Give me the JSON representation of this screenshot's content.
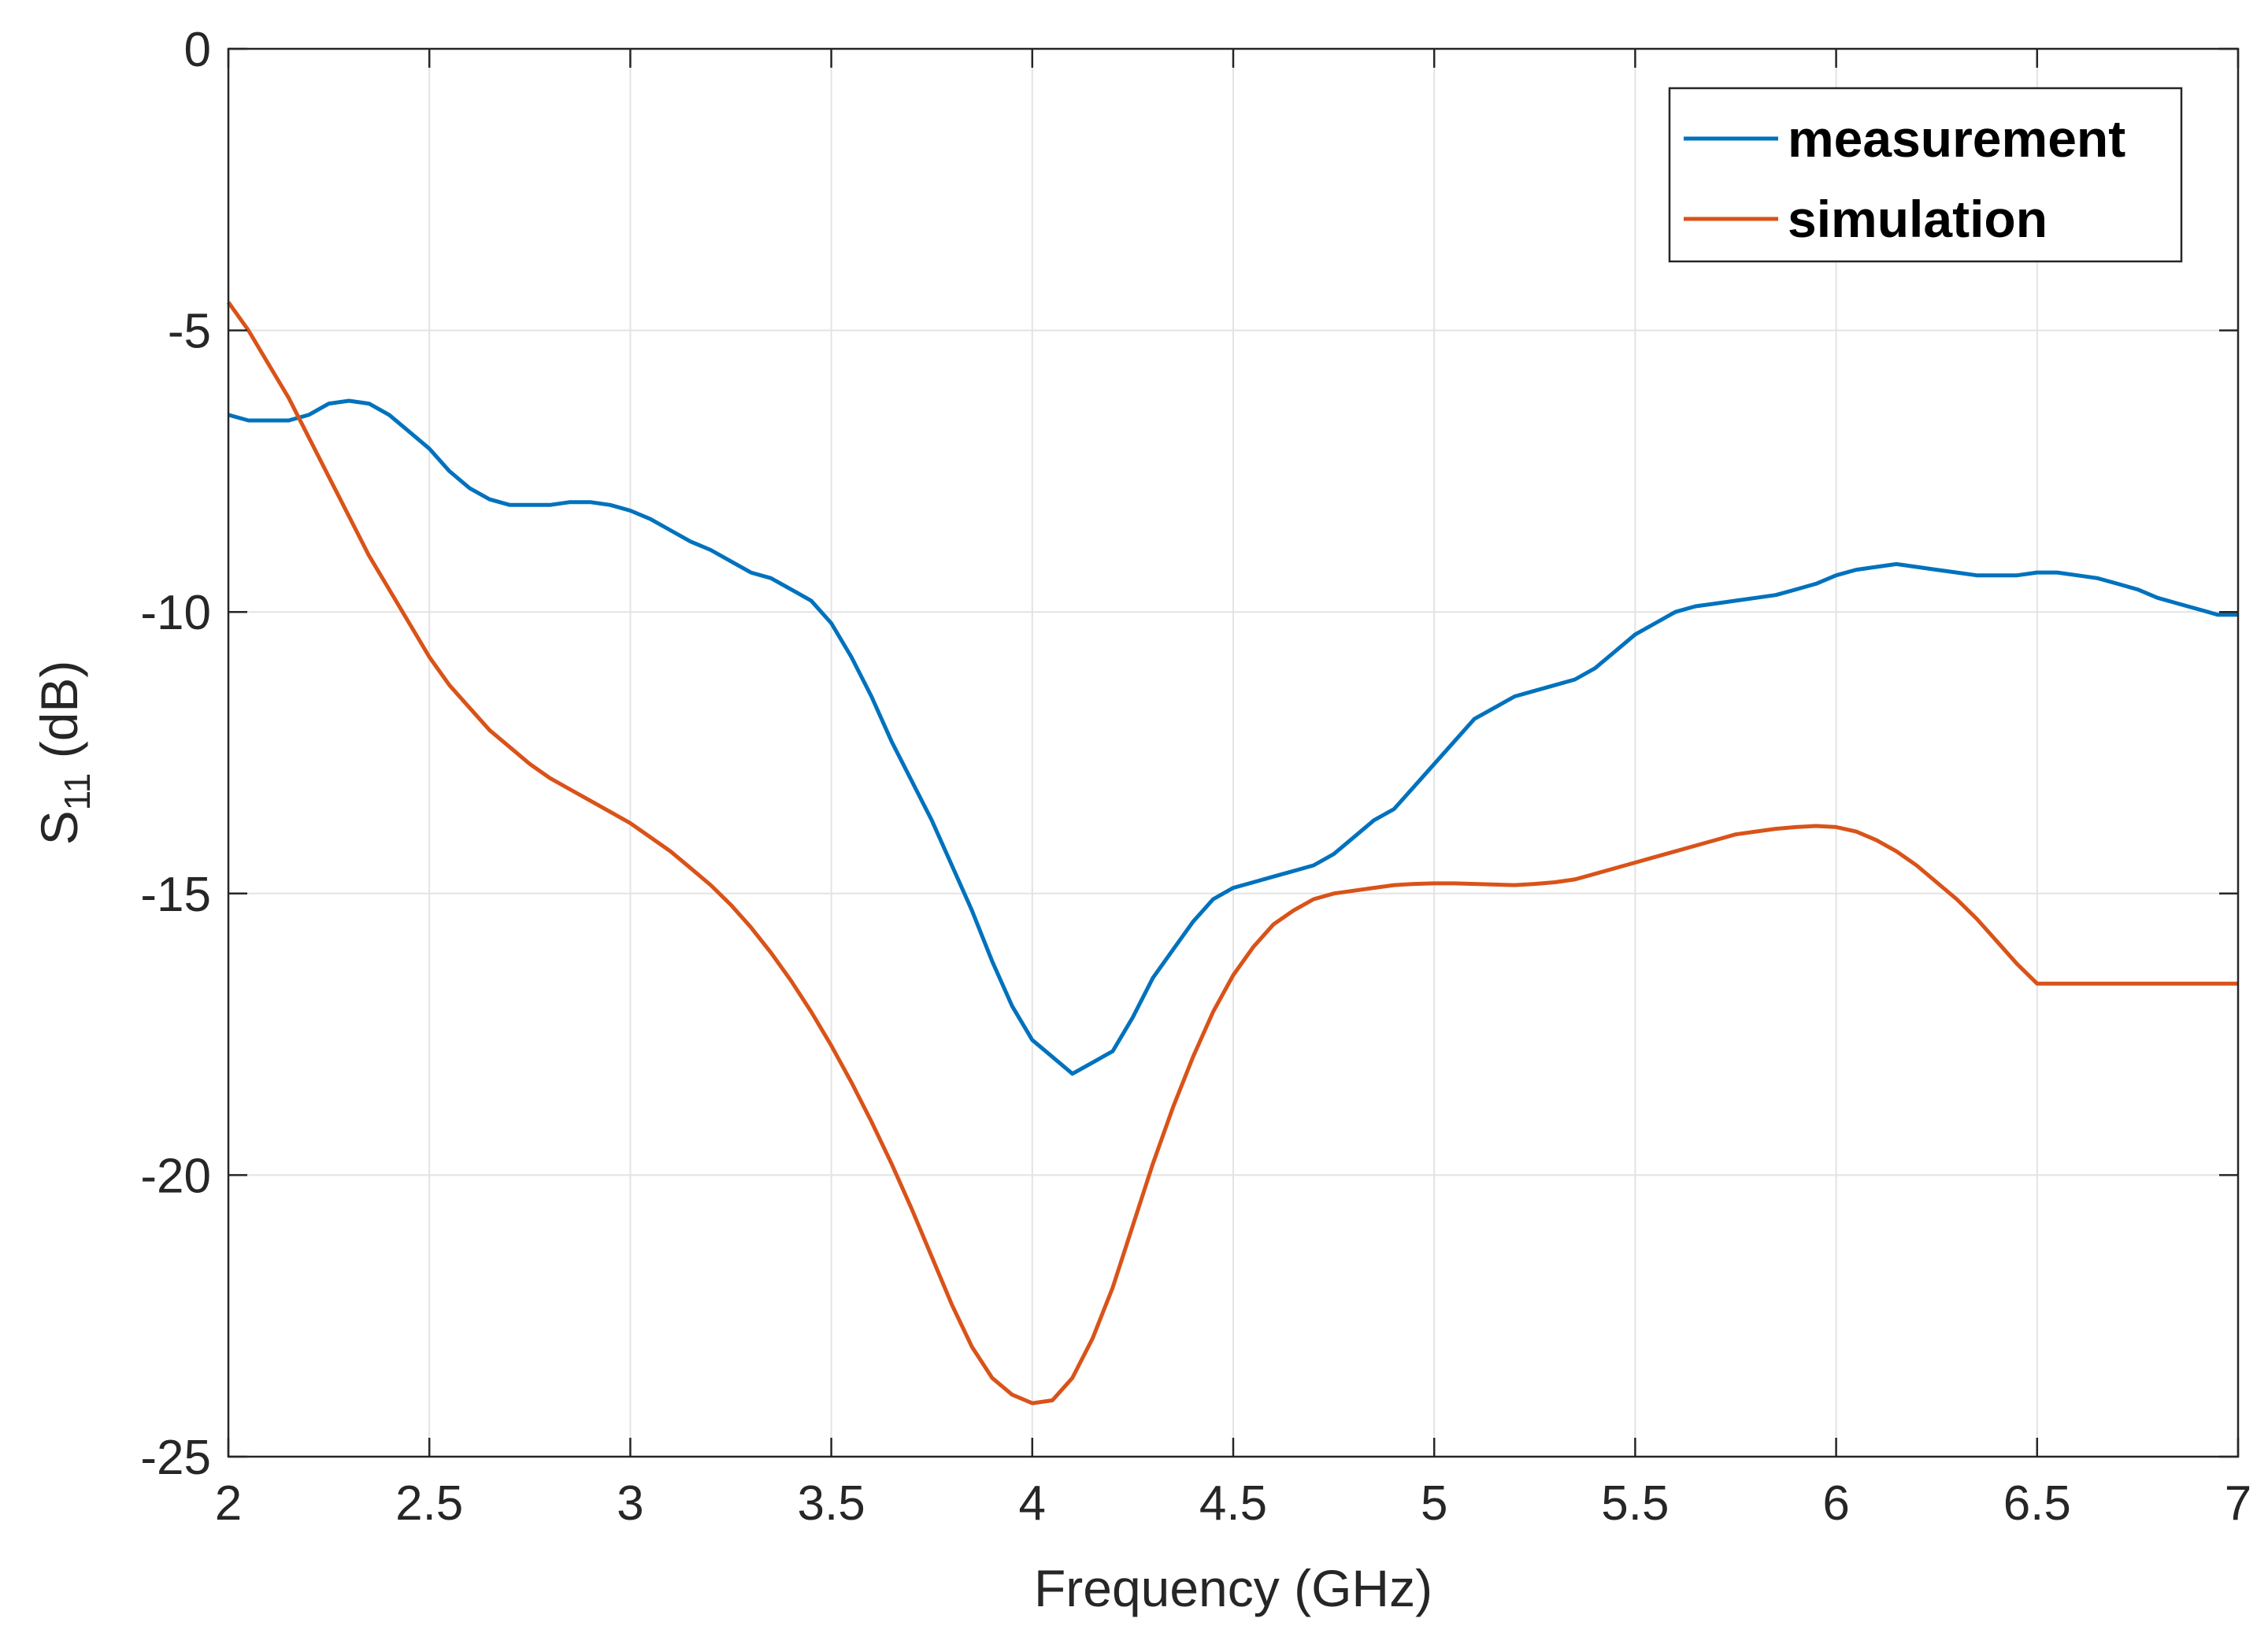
{
  "chart_data": {
    "type": "line",
    "title": "",
    "xlabel": "Frequency (GHz)",
    "ylabel": {
      "main": "S",
      "subscript": "11",
      "unit": " (dB)"
    },
    "xlim": [
      2,
      7
    ],
    "ylim": [
      -25,
      0
    ],
    "xticks": [
      2,
      2.5,
      3,
      3.5,
      4,
      4.5,
      5,
      5.5,
      6,
      6.5,
      7
    ],
    "xtick_labels": [
      "2",
      "2.5",
      "3",
      "3.5",
      "4",
      "4.5",
      "5",
      "5.5",
      "6",
      "6.5",
      "7"
    ],
    "yticks": [
      0,
      -5,
      -10,
      -15,
      -20,
      -25
    ],
    "ytick_labels": [
      "0",
      "-5",
      "-10",
      "-15",
      "-20",
      "-25"
    ],
    "grid": true,
    "legend_position": "top-right",
    "series": [
      {
        "name": "measurement",
        "color": "#0072BD",
        "x": [
          2.0,
          2.05,
          2.1,
          2.15,
          2.2,
          2.25,
          2.3,
          2.35,
          2.4,
          2.45,
          2.5,
          2.55,
          2.6,
          2.65,
          2.7,
          2.75,
          2.8,
          2.85,
          2.9,
          2.95,
          3.0,
          3.05,
          3.1,
          3.15,
          3.2,
          3.25,
          3.3,
          3.35,
          3.4,
          3.45,
          3.5,
          3.55,
          3.6,
          3.65,
          3.7,
          3.75,
          3.8,
          3.85,
          3.9,
          3.95,
          4.0,
          4.05,
          4.1,
          4.15,
          4.2,
          4.25,
          4.3,
          4.35,
          4.4,
          4.45,
          4.5,
          4.55,
          4.6,
          4.65,
          4.7,
          4.75,
          4.8,
          4.85,
          4.9,
          4.95,
          5.0,
          5.05,
          5.1,
          5.15,
          5.2,
          5.25,
          5.3,
          5.35,
          5.4,
          5.45,
          5.5,
          5.55,
          5.6,
          5.65,
          5.7,
          5.75,
          5.8,
          5.85,
          5.9,
          5.95,
          6.0,
          6.05,
          6.1,
          6.15,
          6.2,
          6.25,
          6.3,
          6.35,
          6.4,
          6.45,
          6.5,
          6.55,
          6.6,
          6.65,
          6.7,
          6.75,
          6.8,
          6.85,
          6.9,
          6.95,
          7.0
        ],
        "y": [
          -6.5,
          -6.6,
          -6.6,
          -6.6,
          -6.5,
          -6.3,
          -6.25,
          -6.3,
          -6.5,
          -6.8,
          -7.1,
          -7.5,
          -7.8,
          -8.0,
          -8.1,
          -8.1,
          -8.1,
          -8.05,
          -8.05,
          -8.1,
          -8.2,
          -8.35,
          -8.55,
          -8.75,
          -8.9,
          -9.1,
          -9.3,
          -9.4,
          -9.6,
          -9.8,
          -10.2,
          -10.8,
          -11.5,
          -12.3,
          -13.0,
          -13.7,
          -14.5,
          -15.3,
          -16.2,
          -17.0,
          -17.6,
          -17.9,
          -18.2,
          -18.0,
          -17.8,
          -17.2,
          -16.5,
          -16.0,
          -15.5,
          -15.1,
          -14.9,
          -14.8,
          -14.7,
          -14.6,
          -14.5,
          -14.3,
          -14.0,
          -13.7,
          -13.5,
          -13.1,
          -12.7,
          -12.3,
          -11.9,
          -11.7,
          -11.5,
          -11.4,
          -11.3,
          -11.2,
          -11.0,
          -10.7,
          -10.4,
          -10.2,
          -10.0,
          -9.9,
          -9.85,
          -9.8,
          -9.75,
          -9.7,
          -9.6,
          -9.5,
          -9.35,
          -9.25,
          -9.2,
          -9.15,
          -9.2,
          -9.25,
          -9.3,
          -9.35,
          -9.35,
          -9.35,
          -9.3,
          -9.3,
          -9.35,
          -9.4,
          -9.5,
          -9.6,
          -9.75,
          -9.85,
          -9.95,
          -10.05,
          -10.05
        ]
      },
      {
        "name": "simulation",
        "color": "#D95319",
        "x": [
          2.0,
          2.05,
          2.1,
          2.15,
          2.2,
          2.25,
          2.3,
          2.35,
          2.4,
          2.45,
          2.5,
          2.55,
          2.6,
          2.65,
          2.7,
          2.75,
          2.8,
          2.85,
          2.9,
          2.95,
          3.0,
          3.05,
          3.1,
          3.15,
          3.2,
          3.25,
          3.3,
          3.35,
          3.4,
          3.45,
          3.5,
          3.55,
          3.6,
          3.65,
          3.7,
          3.75,
          3.8,
          3.85,
          3.9,
          3.95,
          4.0,
          4.05,
          4.1,
          4.15,
          4.2,
          4.25,
          4.3,
          4.35,
          4.4,
          4.45,
          4.5,
          4.55,
          4.6,
          4.65,
          4.7,
          4.75,
          4.8,
          4.85,
          4.9,
          4.95,
          5.0,
          5.05,
          5.1,
          5.15,
          5.2,
          5.25,
          5.3,
          5.35,
          5.4,
          5.45,
          5.5,
          5.55,
          5.6,
          5.65,
          5.7,
          5.75,
          5.8,
          5.85,
          5.9,
          5.95,
          6.0,
          6.05,
          6.1,
          6.15,
          6.2,
          6.25,
          6.3,
          6.35,
          6.4,
          6.45,
          6.5,
          6.55,
          6.6,
          6.65,
          6.7,
          6.75,
          6.8,
          6.85,
          6.9,
          6.95,
          7.0
        ],
        "y": [
          -4.5,
          -5.0,
          -5.6,
          -6.2,
          -6.9,
          -7.6,
          -8.3,
          -9.0,
          -9.6,
          -10.2,
          -10.8,
          -11.3,
          -11.7,
          -12.1,
          -12.4,
          -12.7,
          -12.95,
          -13.15,
          -13.35,
          -13.55,
          -13.75,
          -14.0,
          -14.25,
          -14.55,
          -14.85,
          -15.2,
          -15.6,
          -16.05,
          -16.55,
          -17.1,
          -17.7,
          -18.35,
          -19.05,
          -19.8,
          -20.6,
          -21.45,
          -22.3,
          -23.05,
          -23.6,
          -23.9,
          -24.05,
          -24.0,
          -23.6,
          -22.9,
          -22.0,
          -20.9,
          -19.8,
          -18.8,
          -17.9,
          -17.1,
          -16.45,
          -15.95,
          -15.55,
          -15.3,
          -15.1,
          -15.0,
          -14.95,
          -14.9,
          -14.85,
          -14.83,
          -14.82,
          -14.82,
          -14.83,
          -14.84,
          -14.85,
          -14.83,
          -14.8,
          -14.75,
          -14.65,
          -14.55,
          -14.45,
          -14.35,
          -14.25,
          -14.15,
          -14.05,
          -13.95,
          -13.9,
          -13.85,
          -13.82,
          -13.8,
          -13.82,
          -13.9,
          -14.05,
          -14.25,
          -14.5,
          -14.8,
          -15.1,
          -15.45,
          -15.85,
          -16.25,
          -16.6,
          -16.6,
          -16.6,
          -16.6,
          -16.6,
          -16.6,
          -16.6,
          -16.6,
          -16.6,
          -16.6,
          -16.6
        ]
      }
    ]
  }
}
